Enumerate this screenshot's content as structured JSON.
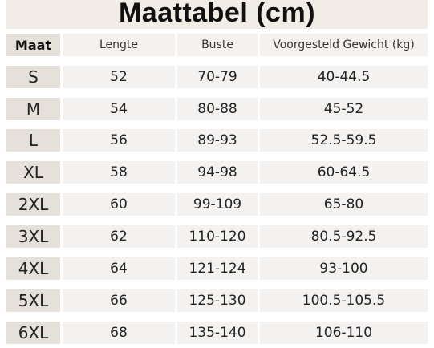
{
  "title": "Maattabel (cm)",
  "headers": {
    "size": "Maat",
    "length": "Lengte",
    "bust": "Buste",
    "weight": "Voorgesteld Gewicht (kg)"
  },
  "rows": [
    {
      "size": "S",
      "length": "52",
      "bust": "70-79",
      "weight": "40-44.5"
    },
    {
      "size": "M",
      "length": "54",
      "bust": "80-88",
      "weight": "45-52"
    },
    {
      "size": "L",
      "length": "56",
      "bust": "89-93",
      "weight": "52.5-59.5"
    },
    {
      "size": "XL",
      "length": "58",
      "bust": "94-98",
      "weight": "60-64.5"
    },
    {
      "size": "2XL",
      "length": "60",
      "bust": "99-109",
      "weight": "65-80"
    },
    {
      "size": "3XL",
      "length": "62",
      "bust": "110-120",
      "weight": "80.5-92.5"
    },
    {
      "size": "4XL",
      "length": "64",
      "bust": "121-124",
      "weight": "93-100"
    },
    {
      "size": "5XL",
      "length": "66",
      "bust": "125-130",
      "weight": "100.5-105.5"
    },
    {
      "size": "6XL",
      "length": "68",
      "bust": "135-140",
      "weight": "106-110"
    }
  ]
}
